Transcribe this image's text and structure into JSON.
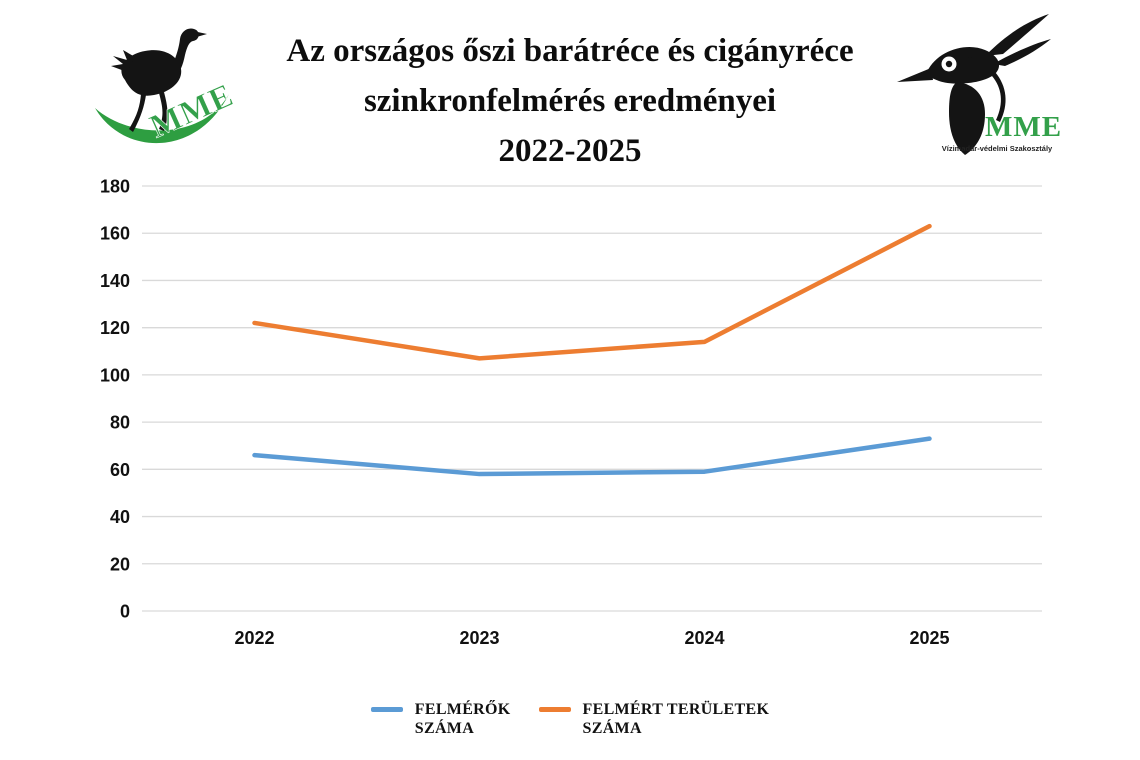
{
  "header": {
    "title_lines": [
      "Az országos őszi barátréce és cigányréce",
      "szinkronfelmérés eredményei",
      "2022-2025"
    ],
    "left_logo": {
      "org": "MME",
      "text": "MME",
      "brand_green": "#2E9E41"
    },
    "right_logo": {
      "org": "MME Vízimadár-védelmi Szakosztály",
      "text": "MME",
      "caption": "Vízimadár-védelmi Szakosztály",
      "brand_green": "#33A04A"
    }
  },
  "chart_data": {
    "type": "line",
    "title": "Az országos őszi barátréce és cigányréce szinkronfelmérés eredményei 2022-2025",
    "categories": [
      "2022",
      "2023",
      "2024",
      "2025"
    ],
    "series": [
      {
        "name": "FELMÉRŐK SZÁMA",
        "color": "#5B9BD5",
        "values": [
          66,
          58,
          59,
          73
        ]
      },
      {
        "name": "FELMÉRT TERÜLETEK SZÁMA",
        "color": "#ED7D31",
        "values": [
          122,
          107,
          114,
          163
        ]
      }
    ],
    "ylim": [
      0,
      180
    ],
    "ytick_step": 20,
    "ytick_labels": [
      "0",
      "20",
      "40",
      "60",
      "80",
      "100",
      "120",
      "140",
      "160",
      "180"
    ],
    "grid": true,
    "gridline_color": "#D9D9D9",
    "tick_color": "#111111",
    "legend_position": "bottom"
  },
  "legend": {
    "entries": [
      {
        "lines": [
          "FELMÉRŐK",
          "SZÁMA"
        ],
        "color": "#5B9BD5"
      },
      {
        "lines": [
          "FELMÉRT TERÜLETEK",
          "SZÁMA"
        ],
        "color": "#ED7D31"
      }
    ]
  }
}
